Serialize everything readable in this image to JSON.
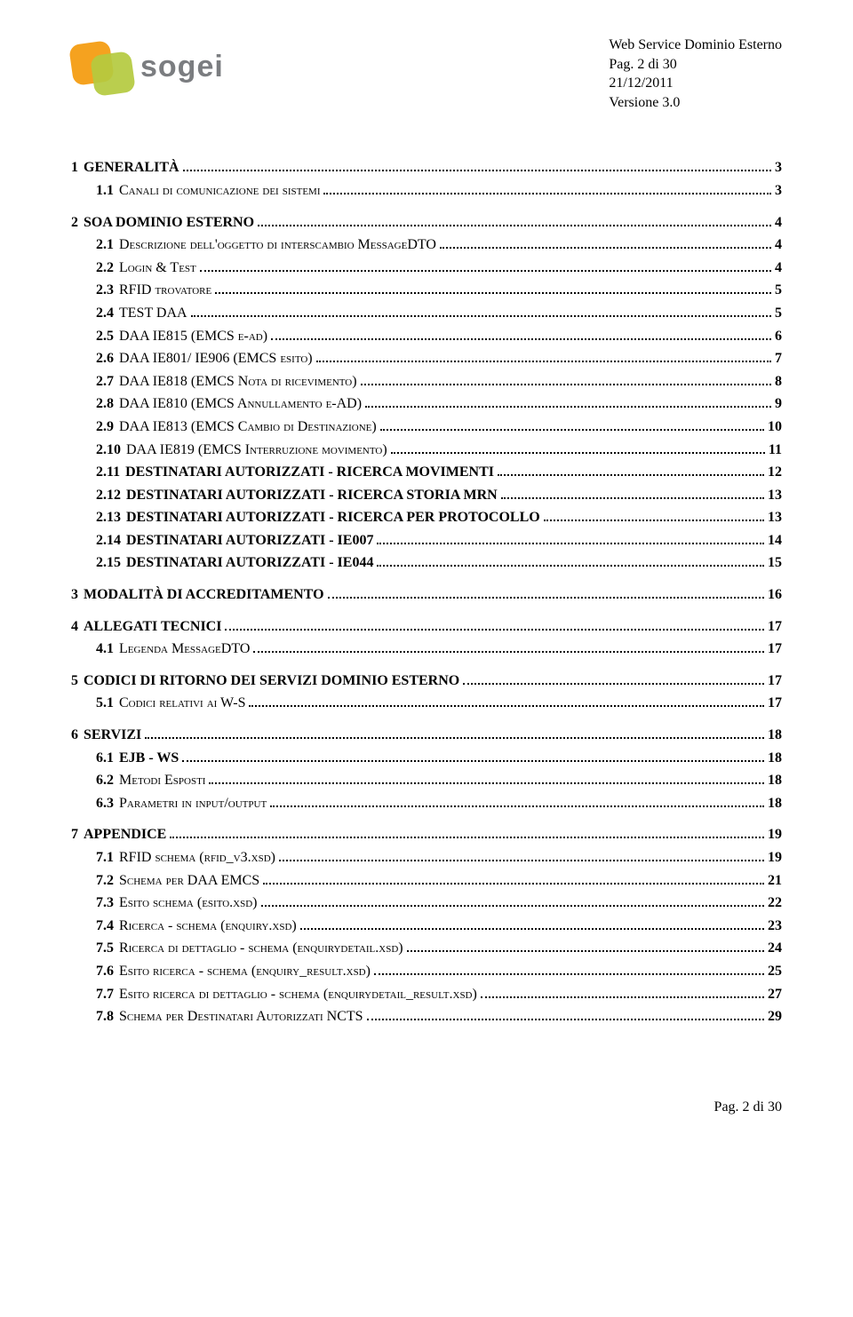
{
  "header": {
    "logo_text": "sogei",
    "meta_lines": [
      "Web Service Dominio Esterno",
      "Pag. 2 di 30",
      "21/12/2011",
      "Versione 3.0"
    ]
  },
  "toc": [
    {
      "level": 0,
      "num": "1",
      "label": "GENERALITÀ",
      "page": "3",
      "boldLabel": true
    },
    {
      "level": 1,
      "num": "1.1",
      "label": "Canali di comunicazione dei sistemi",
      "page": "3",
      "smallcaps": true
    },
    {
      "level": 0,
      "num": "2",
      "label": "SOA DOMINIO ESTERNO",
      "page": "4",
      "boldLabel": true,
      "gap": true
    },
    {
      "level": 1,
      "num": "2.1",
      "label": "Descrizione dell'oggetto di interscambio MessageDTO",
      "page": "4",
      "smallcaps": true
    },
    {
      "level": 1,
      "num": "2.2",
      "label": "Login & Test",
      "page": "4",
      "smallcaps": true
    },
    {
      "level": 1,
      "num": "2.3",
      "label": "RFID trovatore",
      "page": "5",
      "smallcaps": true
    },
    {
      "level": 1,
      "num": "2.4",
      "label": "TEST DAA",
      "page": "5",
      "smallcaps": true
    },
    {
      "level": 1,
      "num": "2.5",
      "label": "DAA   IE815 (EMCS e-ad)",
      "page": "6",
      "smallcaps": true
    },
    {
      "level": 1,
      "num": "2.6",
      "label": "DAA   IE801/ IE906 (EMCS esito)",
      "page": "7",
      "smallcaps": true
    },
    {
      "level": 1,
      "num": "2.7",
      "label": "DAA   IE818  (EMCS Nota di ricevimento)",
      "page": "8",
      "smallcaps": true
    },
    {
      "level": 1,
      "num": "2.8",
      "label": "DAA   IE810  (EMCS Annullamento e-AD)",
      "page": "9",
      "smallcaps": true
    },
    {
      "level": 1,
      "num": "2.9",
      "label": "DAA   IE813 (EMCS  Cambio di Destinazione)",
      "page": "10",
      "smallcaps": true
    },
    {
      "level": 1,
      "num": "2.10",
      "label": "DAA   IE819 (EMCS  Interruzione movimento)",
      "page": "11",
      "smallcaps": true
    },
    {
      "level": 1,
      "num": "2.11",
      "label": "DESTINATARI AUTORIZZATI  -  RICERCA MOVIMENTI",
      "page": "12",
      "boldLabel": true
    },
    {
      "level": 1,
      "num": "2.12",
      "label": "DESTINATARI AUTORIZZATI  -  RICERCA STORIA MRN",
      "page": "13",
      "boldLabel": true
    },
    {
      "level": 1,
      "num": "2.13",
      "label": "DESTINATARI AUTORIZZATI  -  RICERCA PER PROTOCOLLO",
      "page": "13",
      "boldLabel": true
    },
    {
      "level": 1,
      "num": "2.14",
      "label": "DESTINATARI AUTORIZZATI  -  IE007",
      "page": "14",
      "boldLabel": true
    },
    {
      "level": 1,
      "num": "2.15",
      "label": "DESTINATARI AUTORIZZATI  -  IE044",
      "page": "15",
      "boldLabel": true
    },
    {
      "level": 0,
      "num": "3",
      "label": "MODALITÀ DI ACCREDITAMENTO",
      "page": "16",
      "boldLabel": true,
      "gap": true
    },
    {
      "level": 0,
      "num": "4",
      "label": "ALLEGATI TECNICI",
      "page": "17",
      "boldLabel": true,
      "gap": true
    },
    {
      "level": 1,
      "num": "4.1",
      "label": "Legenda MessageDTO",
      "page": "17",
      "smallcaps": true
    },
    {
      "level": 0,
      "num": "5",
      "label": "CODICI DI RITORNO DEI SERVIZI DOMINIO ESTERNO",
      "page": "17",
      "boldLabel": true,
      "gap": true
    },
    {
      "level": 1,
      "num": "5.1",
      "label": "Codici relativi ai W-S",
      "page": "17",
      "smallcaps": true
    },
    {
      "level": 0,
      "num": "6",
      "label": "SERVIZI",
      "page": "18",
      "boldLabel": true,
      "gap": true
    },
    {
      "level": 1,
      "num": "6.1",
      "label": "EJB - WS",
      "page": "18",
      "boldLabel": true
    },
    {
      "level": 1,
      "num": "6.2",
      "label": "Metodi Esposti",
      "page": "18",
      "smallcaps": true
    },
    {
      "level": 1,
      "num": "6.3",
      "label": "Parametri in input/output",
      "page": "18",
      "smallcaps": true
    },
    {
      "level": 0,
      "num": "7",
      "label": "APPENDICE",
      "page": "19",
      "boldLabel": true,
      "gap": true
    },
    {
      "level": 1,
      "num": "7.1",
      "label": "RFID schema  (rfid_v3.xsd)",
      "page": "19",
      "smallcaps": true
    },
    {
      "level": 1,
      "num": "7.2",
      "label": "Schema per DAA EMCS",
      "page": "21",
      "smallcaps": true
    },
    {
      "level": 1,
      "num": "7.3",
      "label": "Esito schema  (esito.xsd)",
      "page": "22",
      "smallcaps": true
    },
    {
      "level": 1,
      "num": "7.4",
      "label": "Ricerca  -  schema  (enquiry.xsd)",
      "page": "23",
      "smallcaps": true
    },
    {
      "level": 1,
      "num": "7.5",
      "label": "Ricerca di dettaglio  -  schema  (enquirydetail.xsd)",
      "page": "24",
      "smallcaps": true
    },
    {
      "level": 1,
      "num": "7.6",
      "label": "Esito ricerca  -  schema  (enquiry_result.xsd)",
      "page": "25",
      "smallcaps": true
    },
    {
      "level": 1,
      "num": "7.7",
      "label": "Esito ricerca di dettaglio  -  schema  (enquirydetail_result.xsd)",
      "page": "27",
      "smallcaps": true
    },
    {
      "level": 1,
      "num": "7.8",
      "label": "Schema per Destinatari Autorizzati NCTS",
      "page": "29",
      "smallcaps": true
    }
  ],
  "footer": "Pag. 2 di 30"
}
